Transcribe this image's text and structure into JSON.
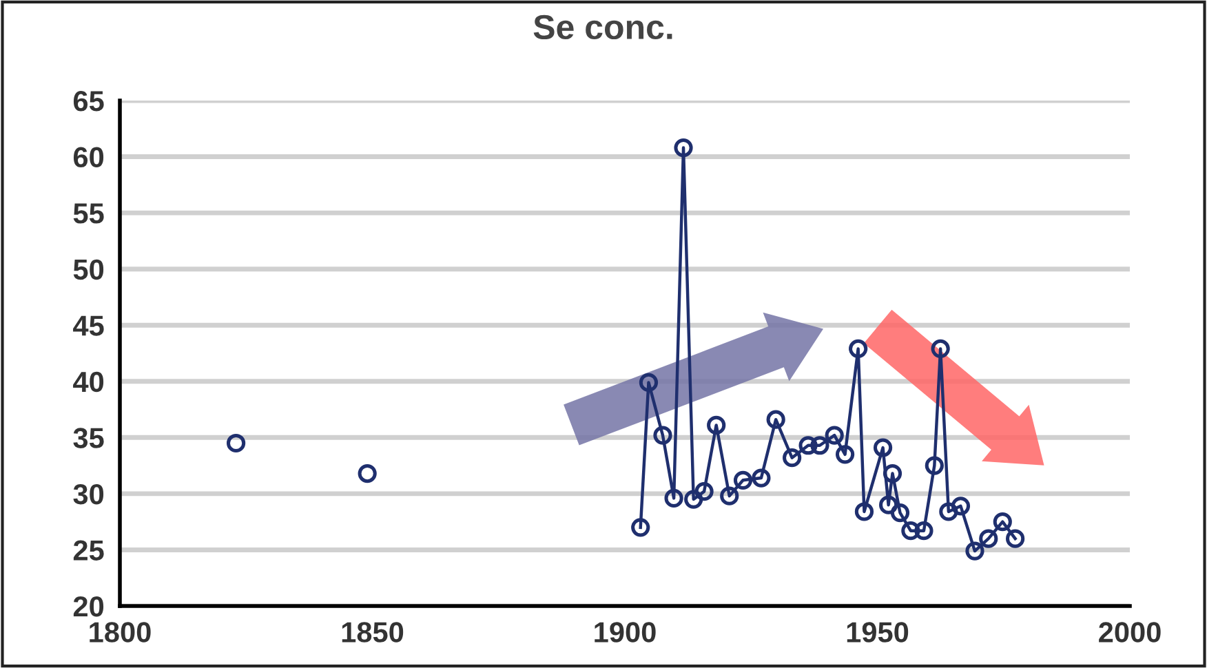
{
  "chart_data": {
    "type": "line",
    "title": "Se conc.",
    "series": [
      {
        "color": "#1f2f6e",
        "x": [
          1823,
          1836,
          1849,
          1876,
          1903.1,
          1904.7,
          1907.5,
          1909.7,
          1911.6,
          1913.6,
          1915.7,
          1918.1,
          1920.7,
          1923.4,
          1927.0,
          1929.9,
          1933.1,
          1936.3,
          1938.6,
          1941.5,
          1943.6,
          1946.2,
          1947.4,
          1951.1,
          1952.2,
          1953.0,
          1954.5,
          1956.6,
          1959.2,
          1961.3,
          1962.5,
          1964.1,
          1966.5,
          1969.3,
          1972.0,
          1974.8,
          1977.3
        ],
        "values": [
          34.5,
          null,
          31.8,
          null,
          27.0,
          39.9,
          35.2,
          29.6,
          60.8,
          29.5,
          30.2,
          36.1,
          29.8,
          31.2,
          31.4,
          36.6,
          33.2,
          34.3,
          34.3,
          35.2,
          33.5,
          42.9,
          28.4,
          34.1,
          29.0,
          31.8,
          28.3,
          26.7,
          26.7,
          32.5,
          42.9,
          28.4,
          28.9,
          24.9,
          26.0,
          27.5,
          26.0
        ]
      }
    ],
    "xlim": [
      1800,
      2000
    ],
    "xticks": [
      1800,
      1850,
      1900,
      1950,
      2000
    ],
    "ylim": [
      20,
      65
    ],
    "yticks": [
      20,
      25,
      30,
      35,
      40,
      45,
      50,
      55,
      60,
      65
    ],
    "grid": "y",
    "marker": "circle",
    "line_style": "solid"
  }
}
